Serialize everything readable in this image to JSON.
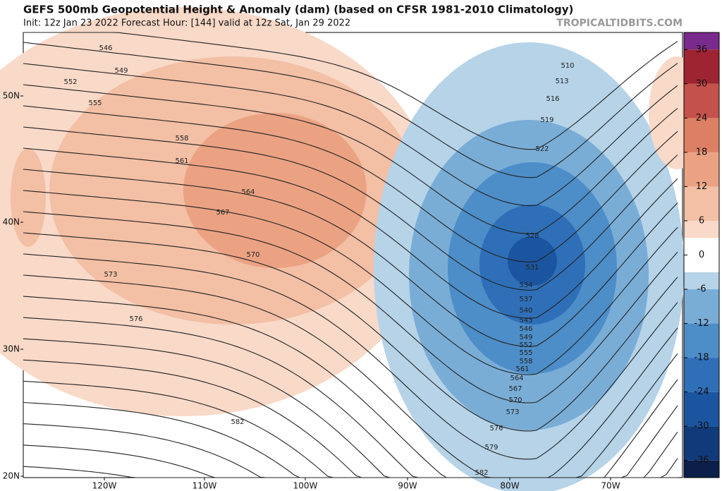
{
  "header": {
    "title": "GEFS 500mb Geopotential Height & Anomaly (dam) (based on CFSR 1981-2010 Climatology)",
    "subtitle": "Init: 12z Jan 23 2022   Forecast Hour: [144]   valid at 12z Sat, Jan 29 2022",
    "watermark": "TROPICALTIDBITS.COM"
  },
  "map": {
    "longitude_labels": [
      "120W",
      "110W",
      "100W",
      "90W",
      "80W",
      "70W"
    ],
    "latitude_labels": [
      "50N",
      "40N",
      "30N",
      "20N"
    ],
    "contour_labels": [
      "546",
      "549",
      "552",
      "555",
      "558",
      "561",
      "564",
      "567",
      "570",
      "573",
      "576",
      "582",
      "510",
      "513",
      "516",
      "519",
      "522",
      "528",
      "531",
      "534",
      "537",
      "540",
      "543",
      "546",
      "549",
      "552",
      "555",
      "558",
      "561",
      "564",
      "567",
      "570",
      "573",
      "576",
      "579",
      "582"
    ]
  },
  "colorbar": {
    "lim": [
      -39,
      39
    ],
    "bounds": [
      -39,
      -36,
      -30,
      -24,
      -18,
      -12,
      -6,
      -3,
      3,
      6,
      12,
      18,
      24,
      30,
      36,
      39
    ],
    "colors": [
      "#0b1f4a",
      "#113a7a",
      "#1b55a0",
      "#2f6fb8",
      "#4d8dc8",
      "#7aadd6",
      "#b6d3e8",
      "#ffffff",
      "#f9d9c8",
      "#f3bfa5",
      "#eba283",
      "#dd7f64",
      "#c4524a",
      "#9e2432",
      "#7a2a8c"
    ],
    "ticks": [
      36,
      30,
      24,
      18,
      12,
      6,
      0,
      -6,
      -12,
      -18,
      -24,
      -30,
      -36
    ]
  }
}
